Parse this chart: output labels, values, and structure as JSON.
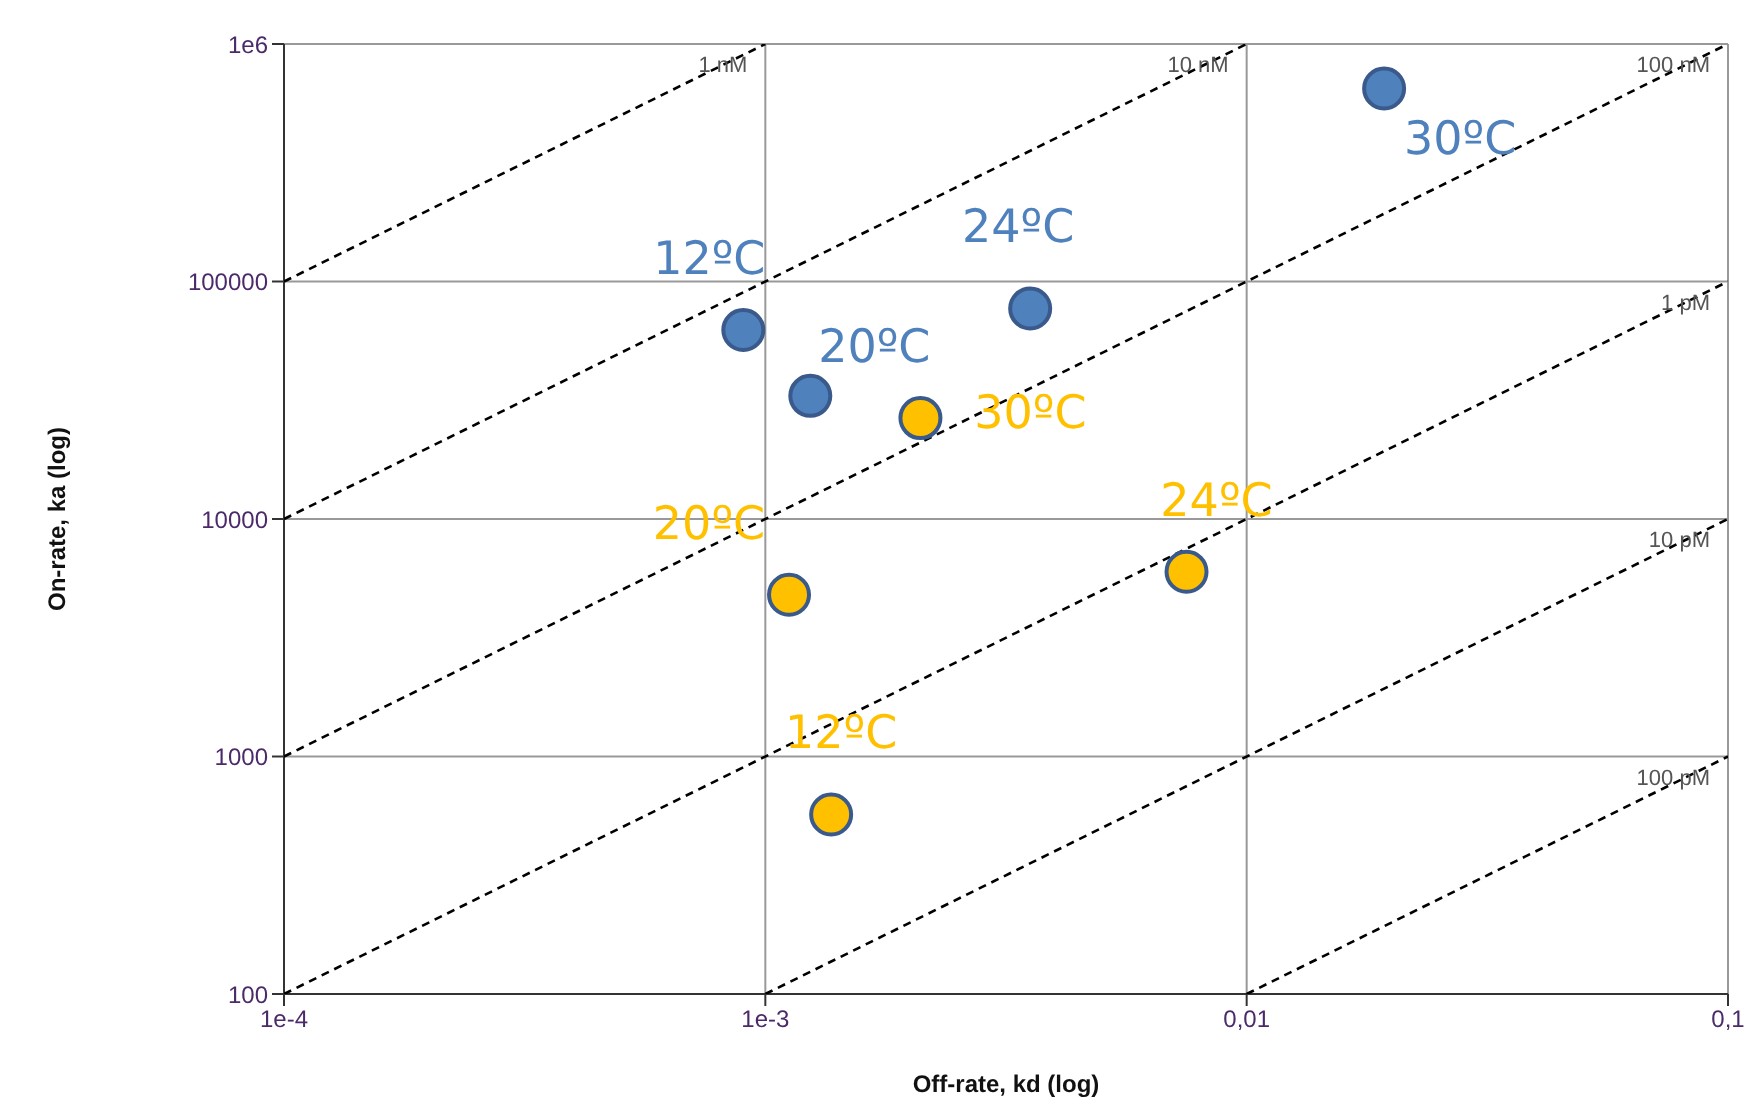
{
  "chart_data": {
    "type": "scatter",
    "xlabel": "Off-rate, kd (log)",
    "ylabel": "On-rate, ka (log)",
    "log": "xy",
    "grid": true,
    "legend": false,
    "marker": "circle",
    "xlim": [
      0.0001,
      0.1
    ],
    "xticks": [
      {
        "value": 0.0001,
        "label": "1e-4"
      },
      {
        "value": 0.001,
        "label": "1e-3"
      },
      {
        "value": 0.01,
        "label": "0,01"
      },
      {
        "value": 0.1,
        "label": "0,1"
      }
    ],
    "ylim": [
      100,
      1000000
    ],
    "yticks": [
      100,
      1000,
      10000,
      100000,
      {
        "value": 1000000,
        "label": "1e6"
      }
    ],
    "series": [
      {
        "type": "line",
        "name": "1 nM",
        "color": "#000000",
        "line_style": "dashed",
        "marker": "none",
        "x": [
          0.0001,
          0.001
        ],
        "values": [
          100000,
          1000000
        ]
      },
      {
        "type": "line",
        "name": "10 nM",
        "color": "#000000",
        "line_style": "dashed",
        "marker": "none",
        "x": [
          0.0001,
          0.01
        ],
        "values": [
          10000,
          1000000
        ]
      },
      {
        "type": "line",
        "name": "100 nM",
        "color": "#000000",
        "line_style": "dashed",
        "marker": "none",
        "x": [
          0.0001,
          0.1
        ],
        "values": [
          1000,
          1000000
        ]
      },
      {
        "type": "line",
        "name": "1 pM",
        "color": "#000000",
        "line_style": "dashed",
        "marker": "none",
        "x": [
          0.0001,
          0.1
        ],
        "values": [
          100,
          100000
        ]
      },
      {
        "type": "line",
        "name": "10 pM",
        "color": "#000000",
        "line_style": "dashed",
        "marker": "none",
        "x": [
          0.001,
          0.1
        ],
        "values": [
          100,
          10000
        ]
      },
      {
        "type": "line",
        "name": "100 pM",
        "color": "#000000",
        "line_style": "dashed",
        "marker": "none",
        "x": [
          0.01,
          0.1
        ],
        "values": [
          100,
          1000
        ]
      },
      {
        "name": "12ºC",
        "color": "#4f81bd",
        "x": [
          0.0009
        ],
        "values": [
          62500
        ]
      },
      {
        "name": "20ºC",
        "color": "#4f81bd",
        "x": [
          0.00124
        ],
        "values": [
          33000
        ]
      },
      {
        "name": "24ºC",
        "color": "#4f81bd",
        "x": [
          0.00355
        ],
        "values": [
          77000
        ]
      },
      {
        "name": "30ºC",
        "color": "#4f81bd",
        "x": [
          0.0193
        ],
        "values": [
          650000
        ]
      },
      {
        "name": "12ºC",
        "color": "#ffc000",
        "x": [
          0.00137
        ],
        "values": [
          570
        ]
      },
      {
        "name": "20ºC",
        "color": "#ffc000",
        "x": [
          0.00112
        ],
        "values": [
          4800
        ]
      },
      {
        "name": "24ºC",
        "color": "#ffc000",
        "x": [
          0.0075
        ],
        "values": [
          6000
        ]
      },
      {
        "name": "30ºC",
        "color": "#ffc000",
        "x": [
          0.0021
        ],
        "values": [
          26600
        ]
      }
    ]
  }
}
